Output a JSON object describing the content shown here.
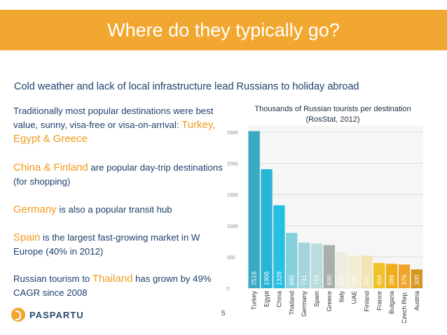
{
  "slide": {
    "title": "Where do they typically go?",
    "subtitle": "Cold weather and lack of local infrastructure lead Russians to holiday abroad",
    "page_number": "5"
  },
  "body": {
    "p1": {
      "text": "Traditionally most popular destinations were best value, sunny, visa-free or visa-on-arrival:",
      "highlight": "Turkey, Egypt & Greece"
    },
    "p2": {
      "highlight": "China & Finland",
      "text": " are popular day-trip destinations (for shopping)"
    },
    "p3": {
      "highlight": "Germany",
      "text": " is also a popular transit hub"
    },
    "p4": {
      "highlight": "Spain",
      "text": " is the largest fast-growing market in W Europe (40% in 2012)"
    },
    "p5": {
      "text_before": "Russian tourism to ",
      "highlight": "Thailand",
      "text_after": " has grown by 49% CAGR since 2008"
    }
  },
  "logo": {
    "name": "PASPARTU"
  },
  "chart_data": {
    "type": "bar",
    "title": "Thousands of Russian tourists per destination (RosStat, 2012)",
    "categories": [
      "Turkey",
      "Egypt",
      "China",
      "Thailand",
      "Germany",
      "Spain",
      "Greece",
      "Italy",
      "UAE",
      "Finland",
      "France",
      "Bulgaria",
      "Czech Rep.",
      "Austria"
    ],
    "values": [
      2516,
      1906,
      1328,
      885,
      731,
      715,
      690,
      570,
      522,
      521,
      404,
      389,
      379,
      300
    ],
    "colors": [
      "#3aa9c4",
      "#2ab4d3",
      "#27c0e3",
      "#84d0dc",
      "#a5d5dc",
      "#b9dcdf",
      "#a8b0ab",
      "#f0ebdf",
      "#f3edd4",
      "#f2e4b6",
      "#f1c227",
      "#f0ae1e",
      "#f0a42b",
      "#d79521"
    ],
    "ylim": [
      0,
      2600
    ],
    "yticks": [
      0,
      500,
      1000,
      1500,
      2000,
      2500
    ],
    "grid": true
  }
}
